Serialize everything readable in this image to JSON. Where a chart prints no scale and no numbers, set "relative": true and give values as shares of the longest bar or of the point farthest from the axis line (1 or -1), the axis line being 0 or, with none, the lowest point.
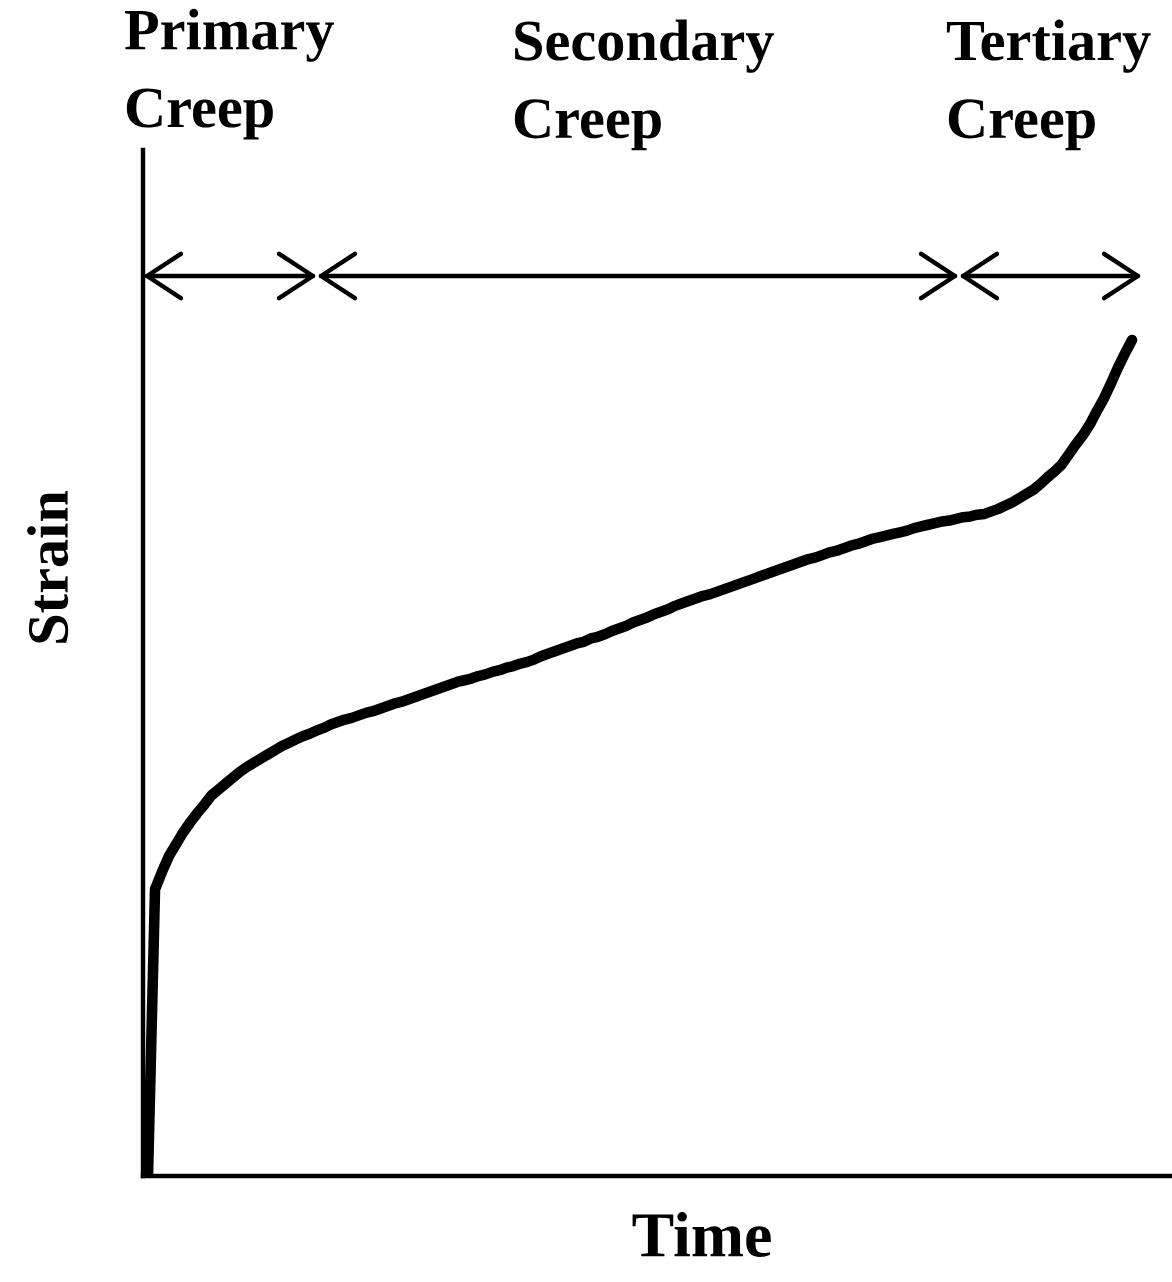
{
  "chart_data": {
    "type": "line",
    "relative": true,
    "xlabel": "Time",
    "ylabel": "Strain",
    "categories": [
      null,
      null,
      null,
      null,
      null,
      null,
      null,
      null,
      null,
      null,
      null,
      null,
      null,
      null,
      null,
      null,
      null,
      null,
      null,
      null,
      null,
      null,
      null,
      null,
      null,
      null,
      null,
      null,
      null,
      null,
      null,
      null,
      null,
      null,
      null,
      null,
      null,
      null,
      null,
      null,
      null,
      null,
      null,
      null,
      null,
      null,
      null,
      null,
      null,
      null,
      null,
      null,
      null,
      null,
      null,
      null,
      null,
      null,
      null,
      null,
      null,
      null,
      null,
      null,
      null,
      null,
      null,
      null,
      null,
      null,
      null,
      null,
      null,
      null,
      null,
      null,
      null,
      null,
      null,
      null,
      null,
      null,
      null,
      null,
      null,
      null,
      null,
      null,
      null,
      null,
      null,
      null,
      null,
      null,
      null,
      null,
      null,
      null,
      null,
      null,
      null,
      null,
      null,
      null,
      null,
      null,
      null,
      null,
      null,
      null,
      null,
      null,
      null,
      null,
      null,
      null,
      null,
      null,
      null,
      null,
      null,
      null,
      null,
      null,
      null,
      null,
      null,
      null,
      null,
      null,
      null,
      null,
      null,
      null,
      null,
      null,
      null,
      null,
      null,
      null,
      null
    ],
    "series": [
      {
        "color": "#000000",
        "values": [
          0,
          0.343,
          0.364,
          0.383,
          0.397,
          0.411,
          0.423,
          0.434,
          0.444,
          0.455,
          0.462,
          0.469,
          0.476,
          0.483,
          0.489,
          0.494,
          0.499,
          0.504,
          0.509,
          0.514,
          0.518,
          0.522,
          0.526,
          0.529,
          0.533,
          0.536,
          0.54,
          0.543,
          0.546,
          0.548,
          0.551,
          0.554,
          0.556,
          0.559,
          0.562,
          0.565,
          0.567,
          0.57,
          0.573,
          0.576,
          0.579,
          0.582,
          0.585,
          0.588,
          0.591,
          0.593,
          0.595,
          0.598,
          0.6,
          0.603,
          0.605,
          0.608,
          0.61,
          0.613,
          0.615,
          0.618,
          0.622,
          0.625,
          0.628,
          0.631,
          0.634,
          0.637,
          0.639,
          0.643,
          0.645,
          0.648,
          0.652,
          0.655,
          0.658,
          0.662,
          0.665,
          0.668,
          0.672,
          0.675,
          0.678,
          0.682,
          0.685,
          0.688,
          0.691,
          0.694,
          0.696,
          0.699,
          0.702,
          0.705,
          0.708,
          0.711,
          0.714,
          0.717,
          0.72,
          0.723,
          0.726,
          0.729,
          0.732,
          0.735,
          0.738,
          0.74,
          0.743,
          0.746,
          0.748,
          0.751,
          0.754,
          0.756,
          0.759,
          0.762,
          0.764,
          0.766,
          0.768,
          0.77,
          0.772,
          0.775,
          0.777,
          0.779,
          0.781,
          0.783,
          0.784,
          0.786,
          0.788,
          0.789,
          0.791,
          0.792,
          0.795,
          0.798,
          0.802,
          0.806,
          0.811,
          0.816,
          0.821,
          0.828,
          0.836,
          0.843,
          0.851,
          0.863,
          0.875,
          0.886,
          0.899,
          0.915,
          0.93,
          0.948,
          0.967,
          0.984,
          1.0
        ]
      }
    ],
    "annotations": [
      "Primary\nCreep",
      "Secondary\nCreep",
      "Tertiary\nCreep"
    ]
  }
}
